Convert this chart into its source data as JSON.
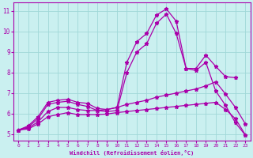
{
  "xlabel": "Windchill (Refroidissement éolien,°C)",
  "xlim": [
    -0.5,
    23.5
  ],
  "ylim": [
    4.7,
    11.4
  ],
  "xticks": [
    0,
    1,
    2,
    3,
    4,
    5,
    6,
    7,
    8,
    9,
    10,
    11,
    12,
    13,
    14,
    15,
    16,
    17,
    18,
    19,
    20,
    21,
    22,
    23
  ],
  "yticks": [
    5,
    6,
    7,
    8,
    9,
    10,
    11
  ],
  "background_color": "#caf0f0",
  "grid_color": "#a0d8d8",
  "line_color": "#aa00aa",
  "lines": [
    {
      "x": [
        0,
        1,
        2,
        3,
        4,
        5,
        6,
        7,
        8,
        9,
        10,
        11,
        12,
        13,
        14,
        15,
        16,
        17,
        18,
        19,
        20,
        21,
        22
      ],
      "y": [
        5.2,
        5.4,
        5.85,
        6.55,
        6.65,
        6.7,
        6.55,
        6.5,
        6.25,
        6.2,
        6.3,
        8.5,
        9.5,
        9.9,
        10.8,
        11.1,
        10.5,
        8.2,
        8.2,
        8.85,
        8.3,
        7.8,
        7.75
      ]
    },
    {
      "x": [
        0,
        1,
        2,
        3,
        4,
        5,
        6,
        7,
        8,
        9,
        10,
        11,
        12,
        13,
        14,
        15,
        16,
        17,
        18,
        19,
        20,
        21,
        22,
        23
      ],
      "y": [
        5.2,
        5.35,
        5.75,
        6.45,
        6.55,
        6.6,
        6.45,
        6.35,
        6.15,
        6.1,
        6.15,
        8.0,
        9.0,
        9.4,
        10.4,
        10.85,
        9.9,
        8.2,
        8.1,
        8.5,
        7.1,
        6.4,
        5.55,
        4.95
      ]
    },
    {
      "x": [
        0,
        1,
        2,
        3,
        4,
        5,
        6,
        7,
        8,
        9,
        10,
        11,
        12,
        13,
        14,
        15,
        16,
        17,
        18,
        19,
        20,
        21,
        22,
        23
      ],
      "y": [
        5.2,
        5.3,
        5.6,
        6.1,
        6.3,
        6.3,
        6.2,
        6.15,
        6.15,
        6.2,
        6.3,
        6.45,
        6.55,
        6.65,
        6.8,
        6.9,
        7.0,
        7.1,
        7.2,
        7.35,
        7.55,
        6.95,
        6.3,
        5.5
      ]
    },
    {
      "x": [
        0,
        1,
        2,
        3,
        4,
        5,
        6,
        7,
        8,
        9,
        10,
        11,
        12,
        13,
        14,
        15,
        16,
        17,
        18,
        19,
        20,
        21,
        22,
        23
      ],
      "y": [
        5.2,
        5.25,
        5.5,
        5.85,
        5.95,
        6.05,
        5.95,
        5.95,
        5.95,
        5.98,
        6.05,
        6.1,
        6.15,
        6.2,
        6.25,
        6.3,
        6.35,
        6.4,
        6.45,
        6.5,
        6.55,
        6.2,
        5.75,
        4.97
      ]
    }
  ],
  "marker": "*",
  "markersize": 3.5,
  "linewidth": 0.9
}
